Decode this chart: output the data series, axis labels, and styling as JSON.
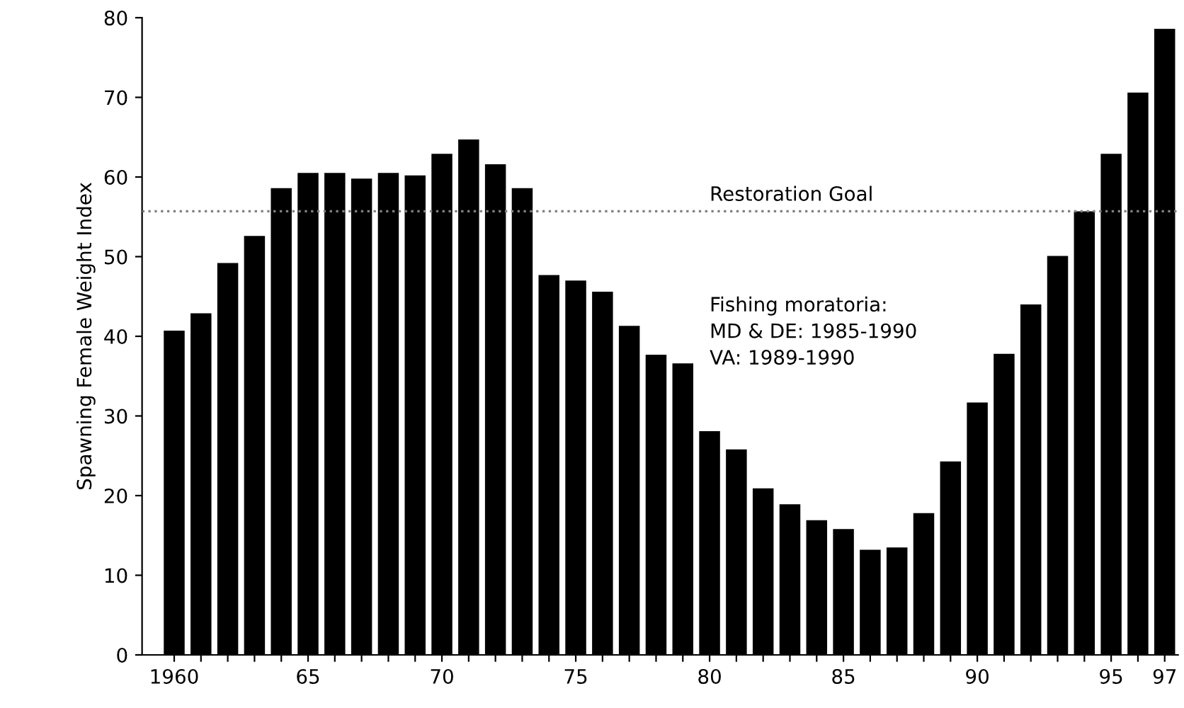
{
  "chart_data": {
    "type": "bar",
    "ylabel": "Spawning Female Weight Index",
    "x": [
      1960,
      1961,
      1962,
      1963,
      1964,
      1965,
      1966,
      1967,
      1968,
      1969,
      1970,
      1971,
      1972,
      1973,
      1974,
      1975,
      1976,
      1977,
      1978,
      1979,
      1980,
      1981,
      1982,
      1983,
      1984,
      1985,
      1986,
      1987,
      1988,
      1989,
      1990,
      1991,
      1992,
      1993,
      1994,
      1995,
      1996,
      1997
    ],
    "values": [
      40.7,
      42.9,
      49.2,
      52.6,
      58.6,
      60.5,
      60.5,
      59.8,
      60.5,
      60.2,
      62.9,
      64.7,
      61.6,
      58.6,
      47.7,
      47.0,
      45.6,
      41.3,
      37.7,
      36.6,
      28.1,
      25.8,
      20.9,
      18.9,
      16.9,
      15.8,
      13.2,
      13.5,
      17.8,
      24.3,
      31.7,
      37.8,
      44.0,
      50.1,
      55.7,
      62.9,
      70.6,
      78.6
    ],
    "color": "#000000",
    "xlim": [
      1958.8,
      1997.5
    ],
    "xticks": [
      {
        "value": 1960,
        "label": "1960"
      },
      {
        "value": 1961,
        "label": null
      },
      {
        "value": 1962,
        "label": null
      },
      {
        "value": 1963,
        "label": null
      },
      {
        "value": 1964,
        "label": null
      },
      {
        "value": 1965,
        "label": "65"
      },
      {
        "value": 1966,
        "label": null
      },
      {
        "value": 1967,
        "label": null
      },
      {
        "value": 1968,
        "label": null
      },
      {
        "value": 1969,
        "label": null
      },
      {
        "value": 1970,
        "label": "70"
      },
      {
        "value": 1971,
        "label": null
      },
      {
        "value": 1972,
        "label": null
      },
      {
        "value": 1973,
        "label": null
      },
      {
        "value": 1974,
        "label": null
      },
      {
        "value": 1975,
        "label": "75"
      },
      {
        "value": 1976,
        "label": null
      },
      {
        "value": 1977,
        "label": null
      },
      {
        "value": 1978,
        "label": null
      },
      {
        "value": 1979,
        "label": null
      },
      {
        "value": 1980,
        "label": "80"
      },
      {
        "value": 1981,
        "label": null
      },
      {
        "value": 1982,
        "label": null
      },
      {
        "value": 1983,
        "label": null
      },
      {
        "value": 1984,
        "label": null
      },
      {
        "value": 1985,
        "label": "85"
      },
      {
        "value": 1986,
        "label": null
      },
      {
        "value": 1987,
        "label": null
      },
      {
        "value": 1988,
        "label": null
      },
      {
        "value": 1989,
        "label": null
      },
      {
        "value": 1990,
        "label": "90"
      },
      {
        "value": 1991,
        "label": null
      },
      {
        "value": 1992,
        "label": null
      },
      {
        "value": 1993,
        "label": null
      },
      {
        "value": 1994,
        "label": null
      },
      {
        "value": 1995,
        "label": "95"
      },
      {
        "value": 1996,
        "label": null
      },
      {
        "value": 1997,
        "label": "97"
      }
    ],
    "ylim": [
      0,
      80
    ],
    "yticks": [
      0,
      10,
      20,
      30,
      40,
      50,
      60,
      70,
      80
    ],
    "ref_lines": [
      {
        "axis": "y",
        "value": 55.7,
        "label": "Restoration Goal",
        "color": "#808080",
        "line_style": "dotted"
      }
    ],
    "annotations": [
      {
        "text": "Fishing moratoria:\nMD & DE: 1985-1990\nVA: 1989-1990"
      }
    ],
    "grid": false
  }
}
